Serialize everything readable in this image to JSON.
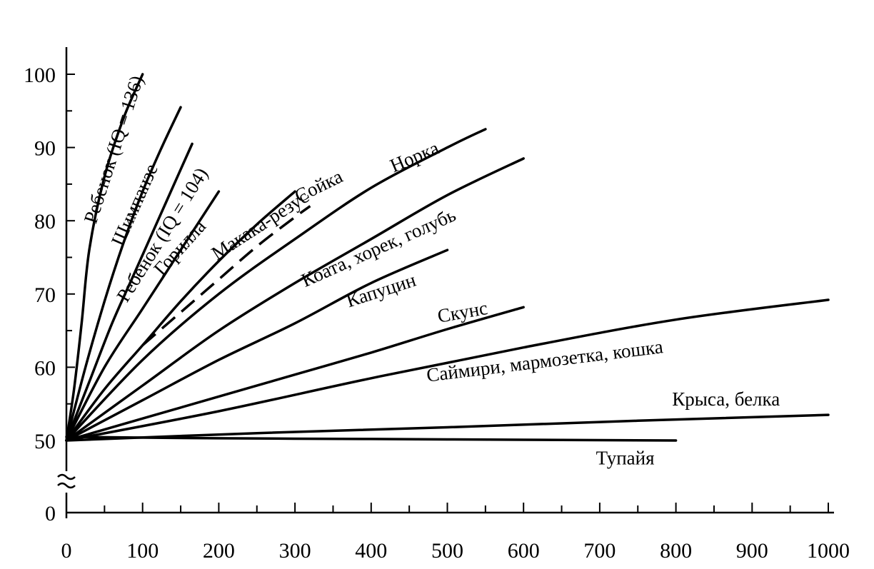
{
  "chart_data": {
    "type": "line",
    "title": "",
    "xlabel": "",
    "ylabel": "",
    "xlim": [
      0,
      1000
    ],
    "ylim": [
      0,
      100
    ],
    "y_axis_break": "between 0 and 50",
    "grid": false,
    "x_ticks": [
      0,
      100,
      200,
      300,
      400,
      500,
      600,
      700,
      800,
      900,
      1000
    ],
    "y_ticks": [
      0,
      50,
      60,
      70,
      80,
      90,
      100
    ],
    "series": [
      {
        "name": "Ребенок (IQ = 136)",
        "color": "#000000",
        "x": [
          0,
          10,
          20,
          30,
          50,
          75,
          100
        ],
        "y": [
          50,
          57,
          66,
          76,
          86,
          94,
          100
        ]
      },
      {
        "name": "Шимпанзе",
        "color": "#000000",
        "x": [
          0,
          25,
          50,
          75,
          100,
          125,
          150
        ],
        "y": [
          50,
          60,
          69,
          77,
          84,
          90,
          95.5
        ]
      },
      {
        "name": "Ребенок (IQ = 104)",
        "color": "#000000",
        "x": [
          0,
          30,
          60,
          90,
          120,
          150,
          165
        ],
        "y": [
          50,
          58,
          66,
          73,
          80,
          87,
          90.5
        ]
      },
      {
        "name": "Горилла",
        "color": "#000000",
        "x": [
          0,
          50,
          100,
          150,
          200
        ],
        "y": [
          50,
          60,
          68,
          76,
          84
        ]
      },
      {
        "name": "Макака-резус",
        "color": "#000000",
        "x": [
          0,
          50,
          100,
          150,
          200,
          250,
          300
        ],
        "y": [
          50,
          57,
          63,
          69,
          74.5,
          79.5,
          84
        ]
      },
      {
        "name": "Сойка",
        "color": "#000000",
        "dashed": true,
        "x": [
          100,
          150,
          200,
          250,
          300,
          320
        ],
        "y": [
          63,
          67.5,
          72,
          76.5,
          80.5,
          82
        ]
      },
      {
        "name": "Норка",
        "color": "#000000",
        "x": [
          0,
          100,
          200,
          300,
          400,
          500,
          550
        ],
        "y": [
          50,
          61,
          70,
          77.5,
          84.5,
          90,
          92.5
        ]
      },
      {
        "name": "Коата, хорек, голубь",
        "color": "#000000",
        "x": [
          0,
          100,
          200,
          300,
          400,
          500,
          600
        ],
        "y": [
          50,
          57.5,
          65,
          71.5,
          77.5,
          83.5,
          88.5
        ]
      },
      {
        "name": "Капуцин",
        "color": "#000000",
        "x": [
          0,
          100,
          200,
          300,
          400,
          500
        ],
        "y": [
          50,
          55.5,
          61,
          66,
          71.5,
          76
        ]
      },
      {
        "name": "Скунс",
        "color": "#000000",
        "x": [
          0,
          100,
          200,
          300,
          400,
          500,
          600
        ],
        "y": [
          50,
          53,
          56,
          59,
          62,
          65.2,
          68.2
        ]
      },
      {
        "name": "Саймири, мармозетка, кошка",
        "color": "#000000",
        "x": [
          0,
          200,
          400,
          600,
          800,
          1000
        ],
        "y": [
          50,
          54,
          58.5,
          62.7,
          66.5,
          69.2
        ]
      },
      {
        "name": "Крыса, белка",
        "color": "#000000",
        "x": [
          0,
          250,
          500,
          750,
          1000
        ],
        "y": [
          50,
          51,
          51.8,
          52.7,
          53.5
        ]
      },
      {
        "name": "Тупайя",
        "color": "#000000",
        "x": [
          0,
          200,
          400,
          600,
          800
        ],
        "y": [
          50.5,
          50.3,
          50.2,
          50.1,
          50
        ]
      }
    ]
  }
}
